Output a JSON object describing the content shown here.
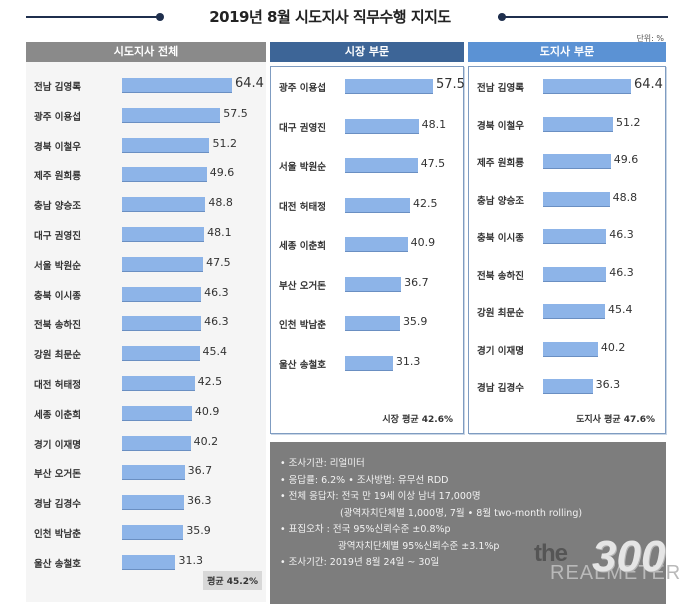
{
  "title": "2019년 8월 시도지사 직무수행 지지도",
  "unit": "단위: %",
  "chart_data": [
    {
      "type": "bar",
      "orientation": "horizontal",
      "title": "시도지사 전체",
      "categories": [
        "전남 김영록",
        "광주 이용섭",
        "경북 이철우",
        "제주 원희룡",
        "충남 양승조",
        "대구 권영진",
        "서울 박원순",
        "충북 이시종",
        "전북 송하진",
        "강원 최문순",
        "대전 허태정",
        "세종 이춘희",
        "경기 이재명",
        "부산 오거돈",
        "경남 김경수",
        "인천 박남춘",
        "울산 송철호"
      ],
      "values": [
        64.4,
        57.5,
        51.2,
        49.6,
        48.8,
        48.1,
        47.5,
        46.3,
        46.3,
        45.4,
        42.5,
        40.9,
        40.2,
        36.7,
        36.3,
        35.9,
        31.3
      ],
      "average_label": "평균 45.2%",
      "bar_color": "#8db4e8",
      "header_color": "#8a8a8a"
    },
    {
      "type": "bar",
      "orientation": "horizontal",
      "title": "시장 부문",
      "categories": [
        "광주 이용섭",
        "대구 권영진",
        "서울 박원순",
        "대전 허태정",
        "세종 이춘희",
        "부산 오거돈",
        "인천 박남춘",
        "울산 송철호"
      ],
      "values": [
        57.5,
        48.1,
        47.5,
        42.5,
        40.9,
        36.7,
        35.9,
        31.3
      ],
      "average_label": "시장 평균 42.6%",
      "bar_color": "#8db4e8",
      "header_color": "#3d6597"
    },
    {
      "type": "bar",
      "orientation": "horizontal",
      "title": "도지사 부문",
      "categories": [
        "전남 김영록",
        "경북 이철우",
        "제주 원희룡",
        "충남 양승조",
        "충북 이시종",
        "전북 송하진",
        "강원 최문순",
        "경기 이재명",
        "경남 김경수"
      ],
      "values": [
        64.4,
        51.2,
        49.6,
        48.8,
        46.3,
        46.3,
        45.4,
        40.2,
        36.3
      ],
      "average_label": "도지사 평균 47.6%",
      "bar_color": "#8db4e8",
      "header_color": "#5b92d4"
    }
  ],
  "notes": [
    "• 조사기관: 리얼미터",
    "• 응답률: 6.2% • 조사방법: 유무선 RDD",
    "• 전체 응답자: 전국 만 19세 이상 남녀 17,000명",
    "(광역자치단체별 1,000명, 7월 • 8월 two-month rolling)",
    "• 표집오차 : 전국 95%신뢰수준 ±0.8%p",
    "광역자치단체별 95%신뢰수준 ±3.1%p",
    "• 조사기간: 2019년 8월 24일 ~ 30일"
  ],
  "logo": {
    "the": "the",
    "num": "300",
    "sub": "REALMETER"
  }
}
